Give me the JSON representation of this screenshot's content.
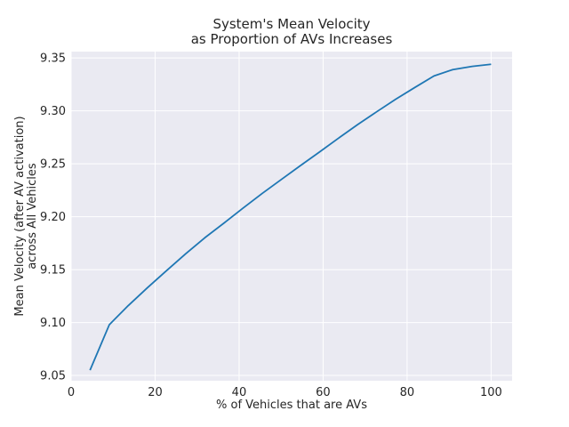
{
  "chart_data": {
    "type": "line",
    "title": [
      "System's Mean Velocity",
      "as Proportion of AVs Increases"
    ],
    "xlabel": "% of Vehicles that are AVs",
    "ylabel": [
      "Mean Velocity (after AV activation)",
      "across All Vehicles"
    ],
    "xlim": [
      0,
      105
    ],
    "ylim": [
      9.045,
      9.356
    ],
    "xticks": [
      0,
      20,
      40,
      60,
      80,
      100
    ],
    "yticks": [
      9.05,
      9.1,
      9.15,
      9.2,
      9.25,
      9.3,
      9.35
    ],
    "xtick_labels": [
      "0",
      "20",
      "40",
      "60",
      "80",
      "100"
    ],
    "ytick_labels": [
      "9.05",
      "9.10",
      "9.15",
      "9.20",
      "9.25",
      "9.30",
      "9.35"
    ],
    "grid": true,
    "series": [
      {
        "color": "#1f77b4",
        "x": [
          4.5,
          9.1,
          13.6,
          18.2,
          22.7,
          27.3,
          31.8,
          36.4,
          40.9,
          45.5,
          50.0,
          54.5,
          59.1,
          63.6,
          68.2,
          72.7,
          77.3,
          81.8,
          86.4,
          90.9,
          95.5,
          100.0
        ],
        "y": [
          9.055,
          9.098,
          9.116,
          9.133,
          9.149,
          9.165,
          9.18,
          9.194,
          9.208,
          9.222,
          9.235,
          9.248,
          9.261,
          9.274,
          9.287,
          9.299,
          9.311,
          9.322,
          9.333,
          9.339,
          9.342,
          9.344
        ]
      }
    ]
  }
}
